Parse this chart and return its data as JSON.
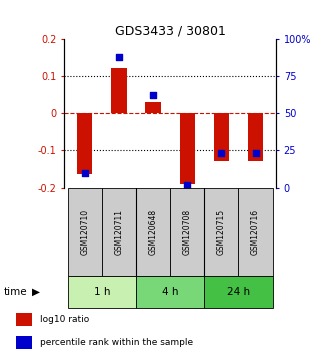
{
  "title": "GDS3433 / 30801",
  "samples": [
    "GSM120710",
    "GSM120711",
    "GSM120648",
    "GSM120708",
    "GSM120715",
    "GSM120716"
  ],
  "log10_ratio": [
    -0.163,
    0.122,
    0.03,
    -0.191,
    -0.128,
    -0.128
  ],
  "percentile_rank": [
    10,
    88,
    62,
    2,
    23,
    23
  ],
  "groups": [
    {
      "label": "1 h",
      "start": 0,
      "end": 2,
      "color": "#c8f0b0"
    },
    {
      "label": "4 h",
      "start": 2,
      "end": 4,
      "color": "#78d878"
    },
    {
      "label": "24 h",
      "start": 4,
      "end": 6,
      "color": "#44c044"
    }
  ],
  "bar_color": "#cc1100",
  "dot_color": "#0000cc",
  "left_ylim": [
    -0.2,
    0.2
  ],
  "right_ylim": [
    0,
    100
  ],
  "left_yticks": [
    -0.2,
    -0.1,
    0,
    0.1,
    0.2
  ],
  "right_yticks": [
    0,
    25,
    50,
    75,
    100
  ],
  "left_yticklabels": [
    "-0.2",
    "-0.1",
    "0",
    "0.1",
    "0.2"
  ],
  "right_yticklabels": [
    "0",
    "25",
    "50",
    "75",
    "100%"
  ],
  "hlines": [
    0.1,
    0.0,
    -0.1
  ],
  "hline_styles": [
    "dotted",
    "dashed",
    "dotted"
  ],
  "hline_colors": [
    "black",
    "#cc1100",
    "black"
  ],
  "bar_width": 0.45,
  "dot_size": 25,
  "sample_box_color": "#cccccc",
  "time_label": "time",
  "legend_items": [
    {
      "color": "#cc1100",
      "label": "log10 ratio"
    },
    {
      "color": "#0000cc",
      "label": "percentile rank within the sample"
    }
  ]
}
